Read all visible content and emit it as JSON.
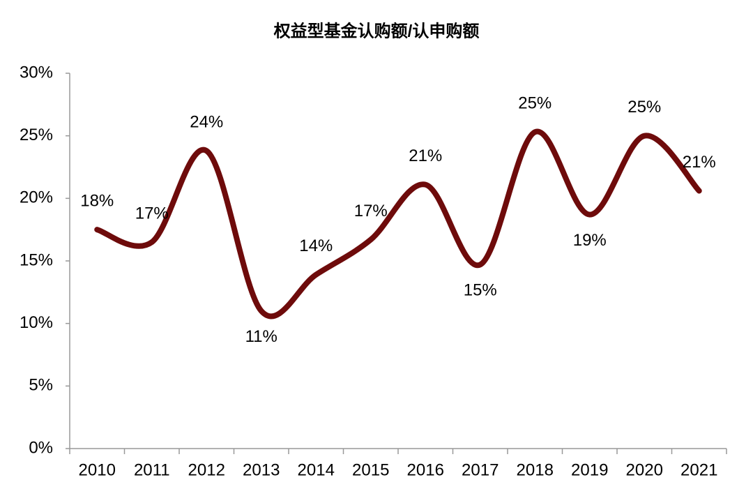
{
  "chart_data": {
    "type": "line",
    "title": "权益型基金认购额/认申购额",
    "categories": [
      "2010",
      "2011",
      "2012",
      "2013",
      "2014",
      "2015",
      "2016",
      "2017",
      "2018",
      "2019",
      "2020",
      "2021"
    ],
    "series": [
      {
        "name": null,
        "color": "#6e0b0b",
        "values": [
          17.5,
          16.5,
          23.8,
          11.0,
          13.9,
          16.7,
          21.1,
          14.7,
          25.3,
          18.7,
          25.0,
          20.6
        ],
        "value_labels": [
          "18%",
          "17%",
          "24%",
          "11%",
          "14%",
          "17%",
          "21%",
          "15%",
          "25%",
          "19%",
          "25%",
          "21%"
        ]
      }
    ],
    "ylim": [
      0,
      30
    ],
    "yticks": [
      {
        "value": 0,
        "label": "0%"
      },
      {
        "value": 5,
        "label": "5%"
      },
      {
        "value": 10,
        "label": "10%"
      },
      {
        "value": 15,
        "label": "15%"
      },
      {
        "value": 20,
        "label": "20%"
      },
      {
        "value": 25,
        "label": "25%"
      },
      {
        "value": 30,
        "label": "30%"
      }
    ],
    "grid": false,
    "smooth": true
  }
}
